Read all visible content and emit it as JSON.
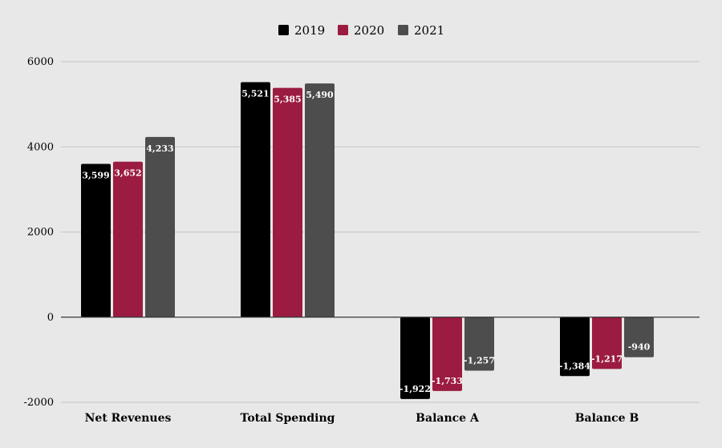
{
  "chart_data": {
    "type": "bar",
    "categories": [
      "Net Revenues",
      "Total Spending",
      "Balance A",
      "Balance B"
    ],
    "series": [
      {
        "name": "2019",
        "color": "#000000",
        "values": [
          3599,
          5521,
          -1922,
          -1384
        ],
        "labels": [
          "3,599",
          "5,521",
          "-1,922",
          "-1,384"
        ]
      },
      {
        "name": "2020",
        "color": "#9b1c40",
        "values": [
          3652,
          5385,
          -1733,
          -1217
        ],
        "labels": [
          "3,652",
          "5,385",
          "-1,733",
          "-1,217"
        ]
      },
      {
        "name": "2021",
        "color": "#4d4d4d",
        "values": [
          4233,
          5490,
          -1257,
          -940
        ],
        "labels": [
          "4,233",
          "5,490",
          "-1,257",
          "-940"
        ]
      }
    ],
    "ylim": [
      -2000,
      6000
    ],
    "yticks": [
      6000,
      4000,
      2000,
      0,
      -2000
    ],
    "ytick_labels": [
      "6000",
      "4000",
      "2000",
      "0",
      "-2000"
    ],
    "grid": true,
    "legend_position": "top-center"
  }
}
